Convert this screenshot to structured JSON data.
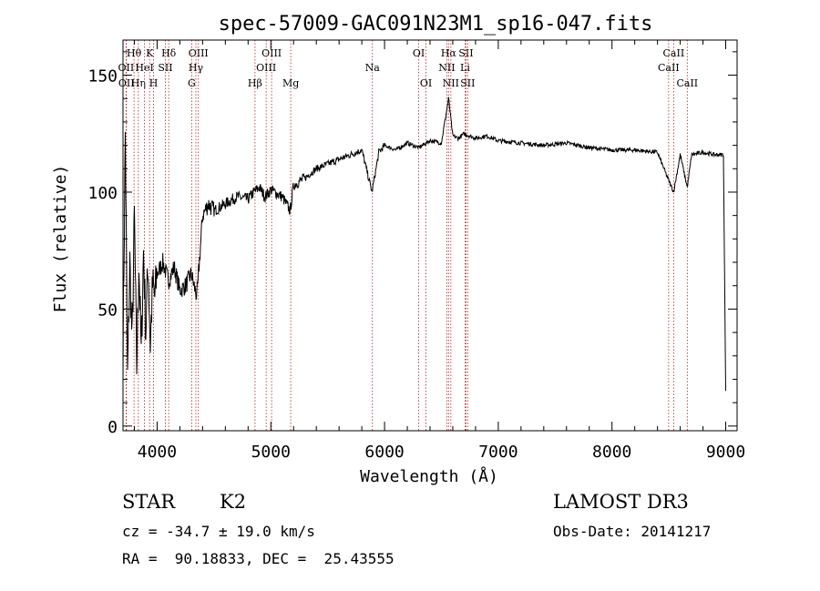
{
  "chart_data": {
    "type": "line",
    "title": "spec-57009-GAC091N23M1_sp16-047.fits",
    "xlabel": "Wavelength (Å)",
    "ylabel": "Flux (relative)",
    "xlim": [
      3700,
      9100
    ],
    "ylim": [
      -2,
      165
    ],
    "xticks": [
      4000,
      5000,
      6000,
      7000,
      8000,
      9000
    ],
    "yticks": [
      0,
      50,
      100,
      150
    ],
    "xtick_labels": [
      "4000",
      "5000",
      "6000",
      "7000",
      "8000",
      "9000"
    ],
    "ytick_labels": [
      "0",
      "50",
      "100",
      "150"
    ],
    "grid": false,
    "line_color": "#000000",
    "marker_color": "#b22222",
    "spectrum": {
      "x": [
        3700,
        3720,
        3740,
        3760,
        3780,
        3800,
        3820,
        3840,
        3860,
        3880,
        3900,
        3920,
        3940,
        3960,
        3980,
        4000,
        4050,
        4100,
        4150,
        4200,
        4250,
        4300,
        4350,
        4400,
        4450,
        4500,
        4600,
        4700,
        4800,
        4850,
        4900,
        4950,
        5000,
        5100,
        5170,
        5200,
        5300,
        5400,
        5500,
        5600,
        5700,
        5800,
        5890,
        5950,
        6000,
        6100,
        6200,
        6300,
        6400,
        6500,
        6563,
        6600,
        6650,
        6700,
        6800,
        6900,
        7000,
        7200,
        7400,
        7600,
        7800,
        8000,
        8200,
        8400,
        8498,
        8542,
        8600,
        8662,
        8700,
        8800,
        8900,
        8980,
        9000
      ],
      "y": [
        30,
        125,
        20,
        70,
        35,
        90,
        25,
        70,
        30,
        75,
        40,
        70,
        35,
        60,
        55,
        65,
        70,
        62,
        68,
        58,
        60,
        65,
        55,
        90,
        95,
        92,
        95,
        98,
        97,
        100,
        102,
        98,
        101,
        98,
        92,
        103,
        106,
        110,
        112,
        114,
        116,
        118,
        100,
        117,
        120,
        118,
        121,
        119,
        122,
        121,
        140,
        124,
        123,
        125,
        123,
        124,
        122,
        121,
        120,
        121,
        119,
        118,
        118,
        117,
        105,
        100,
        116,
        102,
        116,
        117,
        116,
        116,
        15
      ]
    },
    "lines": [
      {
        "label": "Hθ",
        "x": 3797,
        "row": 1
      },
      {
        "label": "OII",
        "x": 3727,
        "row": 2
      },
      {
        "label": "OII",
        "x": 3730,
        "row": 3
      },
      {
        "label": "Hη",
        "x": 3835,
        "row": 3
      },
      {
        "label": "HeI",
        "x": 3889,
        "row": 2
      },
      {
        "label": "K",
        "x": 3934,
        "row": 1
      },
      {
        "label": "H",
        "x": 3969,
        "row": 3
      },
      {
        "label": "SII",
        "x": 4072,
        "row": 2
      },
      {
        "label": "Hδ",
        "x": 4102,
        "row": 1
      },
      {
        "label": "OIII",
        "x": 4363,
        "row": 1
      },
      {
        "label": "Hγ",
        "x": 4341,
        "row": 2
      },
      {
        "label": "G",
        "x": 4304,
        "row": 3
      },
      {
        "label": "OIII",
        "x": 5007,
        "row": 1
      },
      {
        "label": "OIII",
        "x": 4959,
        "row": 2
      },
      {
        "label": "Hβ",
        "x": 4861,
        "row": 3
      },
      {
        "label": "Mg",
        "x": 5175,
        "row": 3
      },
      {
        "label": "Na",
        "x": 5893,
        "row": 2
      },
      {
        "label": "OI",
        "x": 6300,
        "row": 1
      },
      {
        "label": "OI",
        "x": 6364,
        "row": 3
      },
      {
        "label": "Hα",
        "x": 6563,
        "row": 1
      },
      {
        "label": "NII",
        "x": 6548,
        "row": 2
      },
      {
        "label": "NII",
        "x": 6583,
        "row": 3
      },
      {
        "label": "SII",
        "x": 6716,
        "row": 1
      },
      {
        "label": "Li",
        "x": 6708,
        "row": 2
      },
      {
        "label": "SII",
        "x": 6731,
        "row": 3
      },
      {
        "label": "CaII",
        "x": 8542,
        "row": 1
      },
      {
        "label": "CaII",
        "x": 8498,
        "row": 2
      },
      {
        "label": "CaII",
        "x": 8662,
        "row": 3
      }
    ]
  },
  "info": {
    "object_class": "STAR",
    "subclass": "K2",
    "survey": "LAMOST DR3",
    "velocity": "cz = -34.7 ± 19.0 km/s",
    "obs_date": "Obs-Date: 20141217",
    "coords": "RA =  90.18833, DEC =  25.43555"
  }
}
